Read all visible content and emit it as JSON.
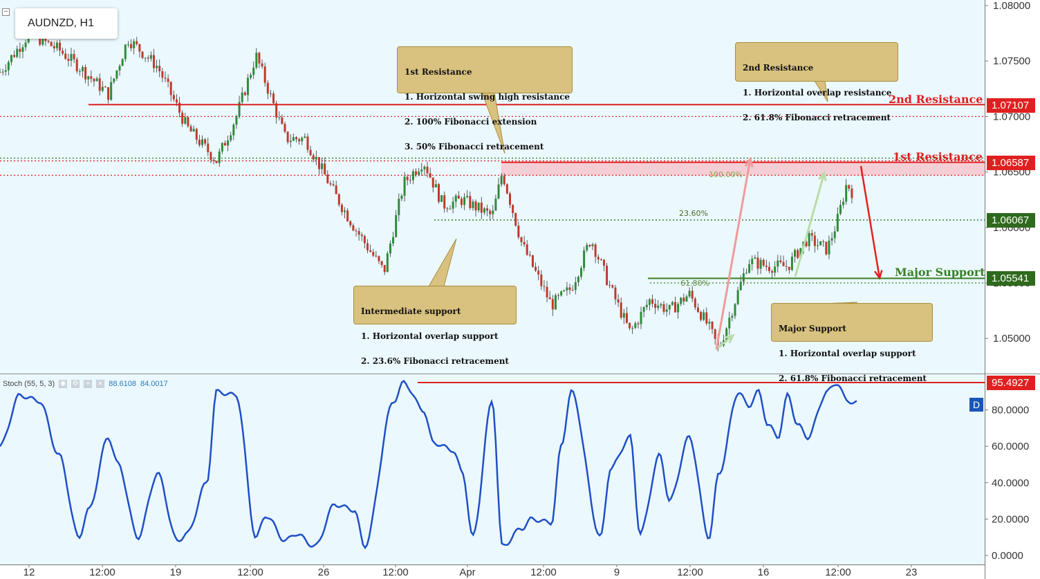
{
  "header": {
    "symbol": "AUDNZD, H1",
    "collapse_icon": "−"
  },
  "price_axis_ticks": [
    "1.08000",
    "1.07500",
    "1.07000",
    "1.06500",
    "1.06000",
    "1.05500",
    "1.05000"
  ],
  "stoch_axis_ticks": [
    "80.0000",
    "60.0000",
    "40.0000",
    "20.0000",
    "0.0000"
  ],
  "time_axis_labels": [
    "12",
    "12:00",
    "19",
    "12:00",
    "26",
    "12:00",
    "Apr",
    "12:00",
    "9",
    "12:00",
    "16",
    "12:00",
    "23"
  ],
  "levels": {
    "second_resistance": {
      "label": "2nd Resistance",
      "price": "1.07107",
      "color": "#e02020"
    },
    "first_resistance": {
      "label": "1st Resistance",
      "price": "1.06587",
      "color": "#e02020"
    },
    "intermediate": {
      "price": "1.06067",
      "color": "#2f7a1f"
    },
    "major_support": {
      "label": "Major Support",
      "price": "1.05541",
      "color": "#2f7a1f"
    }
  },
  "fib_labels": {
    "ext_100": "100.00%",
    "ret_23_6": "23.60%",
    "ret_61_8": "61.80%"
  },
  "notes": {
    "first_resistance": [
      "1st Resistance",
      "1. Horizontal swing high resistance",
      "2. 100% Fibonacci extension",
      "3. 50% Fibonacci retracement"
    ],
    "second_resistance": [
      "2nd Resistance",
      "1. Horizontal overlap resistance",
      "2. 61.8% Fibonacci retracement"
    ],
    "intermediate_support": [
      "Intermediate support",
      "1. Horizontal overlap support",
      "2. 23.6% Fibonacci retracement"
    ],
    "major_support": [
      "Major Support",
      "1. Horizontal overlap support",
      "2. 61.8% Fibonacci retracement"
    ]
  },
  "stochastic": {
    "title": "Stoch (55, 5, 3)",
    "value_k": "88.6108",
    "value_d": "84.0017",
    "level_tag": "95.4927",
    "badge": "D",
    "icons": [
      "eye-icon",
      "gear-icon",
      "plus-icon",
      "close-icon"
    ]
  },
  "colors": {
    "background": "#ebf8fd",
    "bull": "#2e8b3a",
    "bear": "#c0392b",
    "stoch_line": "#1f4fc6",
    "resistance": "#e02020",
    "support": "#3a7f27"
  },
  "chart_data": [
    {
      "type": "candlestick",
      "title": "AUDNZD, H1",
      "x": [
        "12",
        "19",
        "26",
        "Apr",
        "9",
        "16",
        "23"
      ],
      "ylim": [
        1.0475,
        1.0805
      ],
      "grid": false,
      "close_path": [
        [
          0,
          1.074
        ],
        [
          0.03,
          1.0775
        ],
        [
          0.06,
          1.076
        ],
        [
          0.08,
          1.0745
        ],
        [
          0.11,
          1.072
        ],
        [
          0.13,
          1.077
        ],
        [
          0.16,
          1.0745
        ],
        [
          0.19,
          1.069
        ],
        [
          0.22,
          1.066
        ],
        [
          0.24,
          1.07
        ],
        [
          0.26,
          1.0755
        ],
        [
          0.27,
          1.073
        ],
        [
          0.29,
          1.068
        ],
        [
          0.31,
          1.068
        ],
        [
          0.34,
          1.063
        ],
        [
          0.36,
          1.06
        ],
        [
          0.39,
          1.056
        ],
        [
          0.41,
          1.064
        ],
        [
          0.43,
          1.066
        ],
        [
          0.45,
          1.062
        ],
        [
          0.47,
          1.0625
        ],
        [
          0.5,
          1.061
        ],
        [
          0.51,
          1.065
        ],
        [
          0.53,
          1.0585
        ],
        [
          0.56,
          1.053
        ],
        [
          0.58,
          1.0545
        ],
        [
          0.6,
          1.059
        ],
        [
          0.62,
          1.0545
        ],
        [
          0.64,
          1.0505
        ],
        [
          0.66,
          1.0535
        ],
        [
          0.68,
          1.0525
        ],
        [
          0.7,
          1.054
        ],
        [
          0.72,
          1.051
        ],
        [
          0.73,
          1.049
        ],
        [
          0.76,
          1.057
        ],
        [
          0.78,
          1.0565
        ],
        [
          0.8,
          1.0565
        ],
        [
          0.82,
          1.059
        ],
        [
          0.84,
          1.058
        ],
        [
          0.85,
          1.0605
        ],
        [
          0.86,
          1.064
        ],
        [
          0.87,
          1.0625
        ]
      ]
    },
    {
      "type": "line",
      "title": "Stoch (55, 5, 3)",
      "ylim": [
        0,
        100
      ],
      "series": [
        {
          "name": "Stoch",
          "x": [
            0,
            0.02,
            0.04,
            0.06,
            0.08,
            0.09,
            0.11,
            0.12,
            0.14,
            0.16,
            0.18,
            0.19,
            0.21,
            0.22,
            0.24,
            0.26,
            0.27,
            0.29,
            0.3,
            0.32,
            0.34,
            0.36,
            0.37,
            0.4,
            0.41,
            0.43,
            0.44,
            0.46,
            0.47,
            0.48,
            0.5,
            0.51,
            0.53,
            0.54,
            0.56,
            0.57,
            0.58,
            0.61,
            0.62,
            0.64,
            0.65,
            0.67,
            0.68,
            0.7,
            0.72,
            0.73,
            0.75,
            0.76,
            0.77,
            0.78,
            0.79,
            0.8,
            0.81,
            0.82,
            0.84,
            0.85,
            0.86,
            0.87
          ],
          "values": [
            60,
            88,
            85,
            55,
            10,
            25,
            65,
            50,
            10,
            45,
            8,
            12,
            40,
            90,
            88,
            10,
            22,
            8,
            12,
            5,
            28,
            25,
            5,
            85,
            95,
            80,
            62,
            58,
            45,
            10,
            85,
            5,
            15,
            20,
            18,
            60,
            90,
            10,
            48,
            65,
            12,
            55,
            30,
            65,
            10,
            45,
            90,
            82,
            90,
            72,
            65,
            88,
            72,
            65,
            90,
            95,
            85,
            84
          ]
        }
      ]
    }
  ]
}
